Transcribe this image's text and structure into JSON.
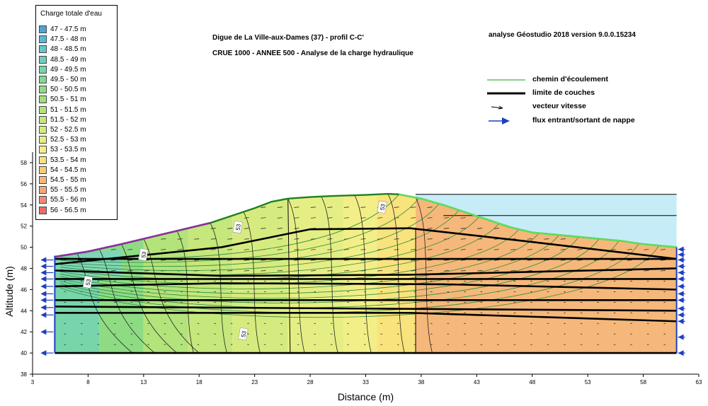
{
  "chart_data": {
    "type": "area",
    "title": "Digue de La Ville-aux-Dames (37) - profil C-C'",
    "subtitle": "CRUE 1000 - ANNEE 500 - Analyse de la charge hydraulique",
    "software_note": "analyse Géostudio 2018 version 9.0.0.15234",
    "xlabel": "Distance (m)",
    "ylabel": "Altitude (m)",
    "xlim": [
      3,
      63
    ],
    "ylim": [
      38,
      59
    ],
    "xticks": [
      "3",
      "8",
      "13",
      "18",
      "23",
      "28",
      "33",
      "38",
      "43",
      "48",
      "53",
      "58",
      "63"
    ],
    "yticks": [
      "38",
      "40",
      "42",
      "44",
      "46",
      "48",
      "50",
      "52",
      "54",
      "56",
      "58"
    ],
    "grid": false,
    "legend_placement": "top-left",
    "legend_title": "Charge totale d'eau",
    "legend": [
      {
        "label": "47 - 47.5 m",
        "color": "#4fa3d6"
      },
      {
        "label": "47.5 - 48 m",
        "color": "#5cb7d8"
      },
      {
        "label": "48 - 48.5 m",
        "color": "#67c6cc"
      },
      {
        "label": "48.5 - 49 m",
        "color": "#6fcfbe"
      },
      {
        "label": "49 - 49.5 m",
        "color": "#78d4aa"
      },
      {
        "label": "49.5 - 50 m",
        "color": "#82d795"
      },
      {
        "label": "50 - 50.5 m",
        "color": "#8edb84"
      },
      {
        "label": "50.5 - 51 m",
        "color": "#a0df7c"
      },
      {
        "label": "51 - 51.5 m",
        "color": "#b3e37b"
      },
      {
        "label": "51.5 - 52 m",
        "color": "#c5e77c"
      },
      {
        "label": "52 - 52.5 m",
        "color": "#d6eb7f"
      },
      {
        "label": "52.5 - 53 m",
        "color": "#e5ee84"
      },
      {
        "label": "53 - 53.5 m",
        "color": "#f2ef88"
      },
      {
        "label": "53.5 - 54 m",
        "color": "#f8e37d"
      },
      {
        "label": "54 - 54.5 m",
        "color": "#f7cd78"
      },
      {
        "label": "54.5 - 55 m",
        "color": "#f5b87a"
      },
      {
        "label": "55 - 55.5 m",
        "color": "#f3a77a"
      },
      {
        "label": "55.5 - 56 m",
        "color": "#f18a78"
      },
      {
        "label": "56 - 56.5 m",
        "color": "#ee6a6a"
      }
    ],
    "key": [
      {
        "label": "chemin d'écoulement",
        "symbol": "thin-green-line",
        "color": "#3cb44b"
      },
      {
        "label": "limite de couches",
        "symbol": "thick-black-line",
        "color": "#000000"
      },
      {
        "label": "vecteur vitesse",
        "symbol": "arrow",
        "color": "#000000"
      },
      {
        "label": "flux entrant/sortant de nappe",
        "symbol": "blue-arrow",
        "color": "#1f3fbf"
      }
    ],
    "contour_labels": [
      {
        "text": "53",
        "x": 34.5,
        "y": 53.8
      },
      {
        "text": "53",
        "x": 21.5,
        "y": 51.9
      },
      {
        "text": "53",
        "x": 13,
        "y": 49.3
      },
      {
        "text": "53",
        "x": 8,
        "y": 46.7
      },
      {
        "text": "53",
        "x": 22,
        "y": 41.8
      }
    ],
    "ground_surface": {
      "x": [
        5,
        8,
        11,
        13,
        15,
        17,
        19,
        21,
        23,
        24.5,
        26,
        28,
        30,
        33,
        35,
        36,
        38,
        40,
        42,
        44,
        46,
        48,
        50,
        52,
        54,
        56,
        58,
        61
      ],
      "y": [
        49.1,
        49.6,
        50.3,
        50.8,
        51.3,
        51.8,
        52.3,
        53.0,
        53.7,
        54.3,
        54.6,
        54.75,
        54.85,
        54.95,
        55.05,
        55.0,
        54.6,
        54.0,
        53.3,
        52.6,
        51.9,
        51.4,
        51.2,
        51.0,
        50.8,
        50.6,
        50.3,
        50.0
      ]
    },
    "reservoir_level": 55.0,
    "reservoir_line_2": 53.0,
    "reservoir_from_x": 37.5,
    "bottom": 40.0,
    "left_x": 5,
    "right_x": 61,
    "layer_boundaries": [
      {
        "x": [
          5,
          20,
          28,
          37,
          48,
          61
        ],
        "y": [
          48.4,
          50.0,
          51.7,
          51.8,
          50.5,
          48.9
        ]
      },
      {
        "x": [
          5,
          61
        ],
        "y": [
          48.9,
          48.9
        ]
      },
      {
        "x": [
          5,
          20,
          37,
          61
        ],
        "y": [
          47.8,
          47.3,
          47.4,
          48.0
        ]
      },
      {
        "x": [
          5,
          61
        ],
        "y": [
          47.0,
          47.0
        ]
      },
      {
        "x": [
          5,
          20,
          40,
          61
        ],
        "y": [
          46.3,
          46.6,
          46.5,
          46.0
        ]
      },
      {
        "x": [
          5,
          61
        ],
        "y": [
          45.0,
          45.0
        ]
      },
      {
        "x": [
          5,
          61
        ],
        "y": [
          44.4,
          44.0
        ]
      },
      {
        "x": [
          5,
          37,
          61
        ],
        "y": [
          43.8,
          43.8,
          43.0
        ]
      }
    ],
    "head_zones": [
      {
        "x_from": 5,
        "x_to": 9,
        "value": 49.2
      },
      {
        "x_from": 9,
        "x_to": 13,
        "value": 50.2
      },
      {
        "x_from": 13,
        "x_to": 17,
        "value": 51.1
      },
      {
        "x_from": 17,
        "x_to": 21,
        "value": 51.7
      },
      {
        "x_from": 21,
        "x_to": 26,
        "value": 52.3
      },
      {
        "x_from": 26,
        "x_to": 31,
        "value": 52.8
      },
      {
        "x_from": 31,
        "x_to": 34,
        "value": 53.2
      },
      {
        "x_from": 34,
        "x_to": 37.5,
        "value": 53.7
      },
      {
        "x_from": 37.5,
        "x_to": 61,
        "value": 54.8
      }
    ],
    "inflow_nodes_left_y": [
      40,
      42,
      43.6,
      44.3,
      45,
      45.6,
      46.3,
      47,
      47.6,
      48.2,
      48.8
    ],
    "inflow_nodes_right_y": [
      40,
      41.5,
      43,
      43.6,
      44.2,
      45,
      45.6,
      46.3,
      47,
      47.6,
      48.2,
      48.8,
      49.3,
      49.8
    ]
  }
}
